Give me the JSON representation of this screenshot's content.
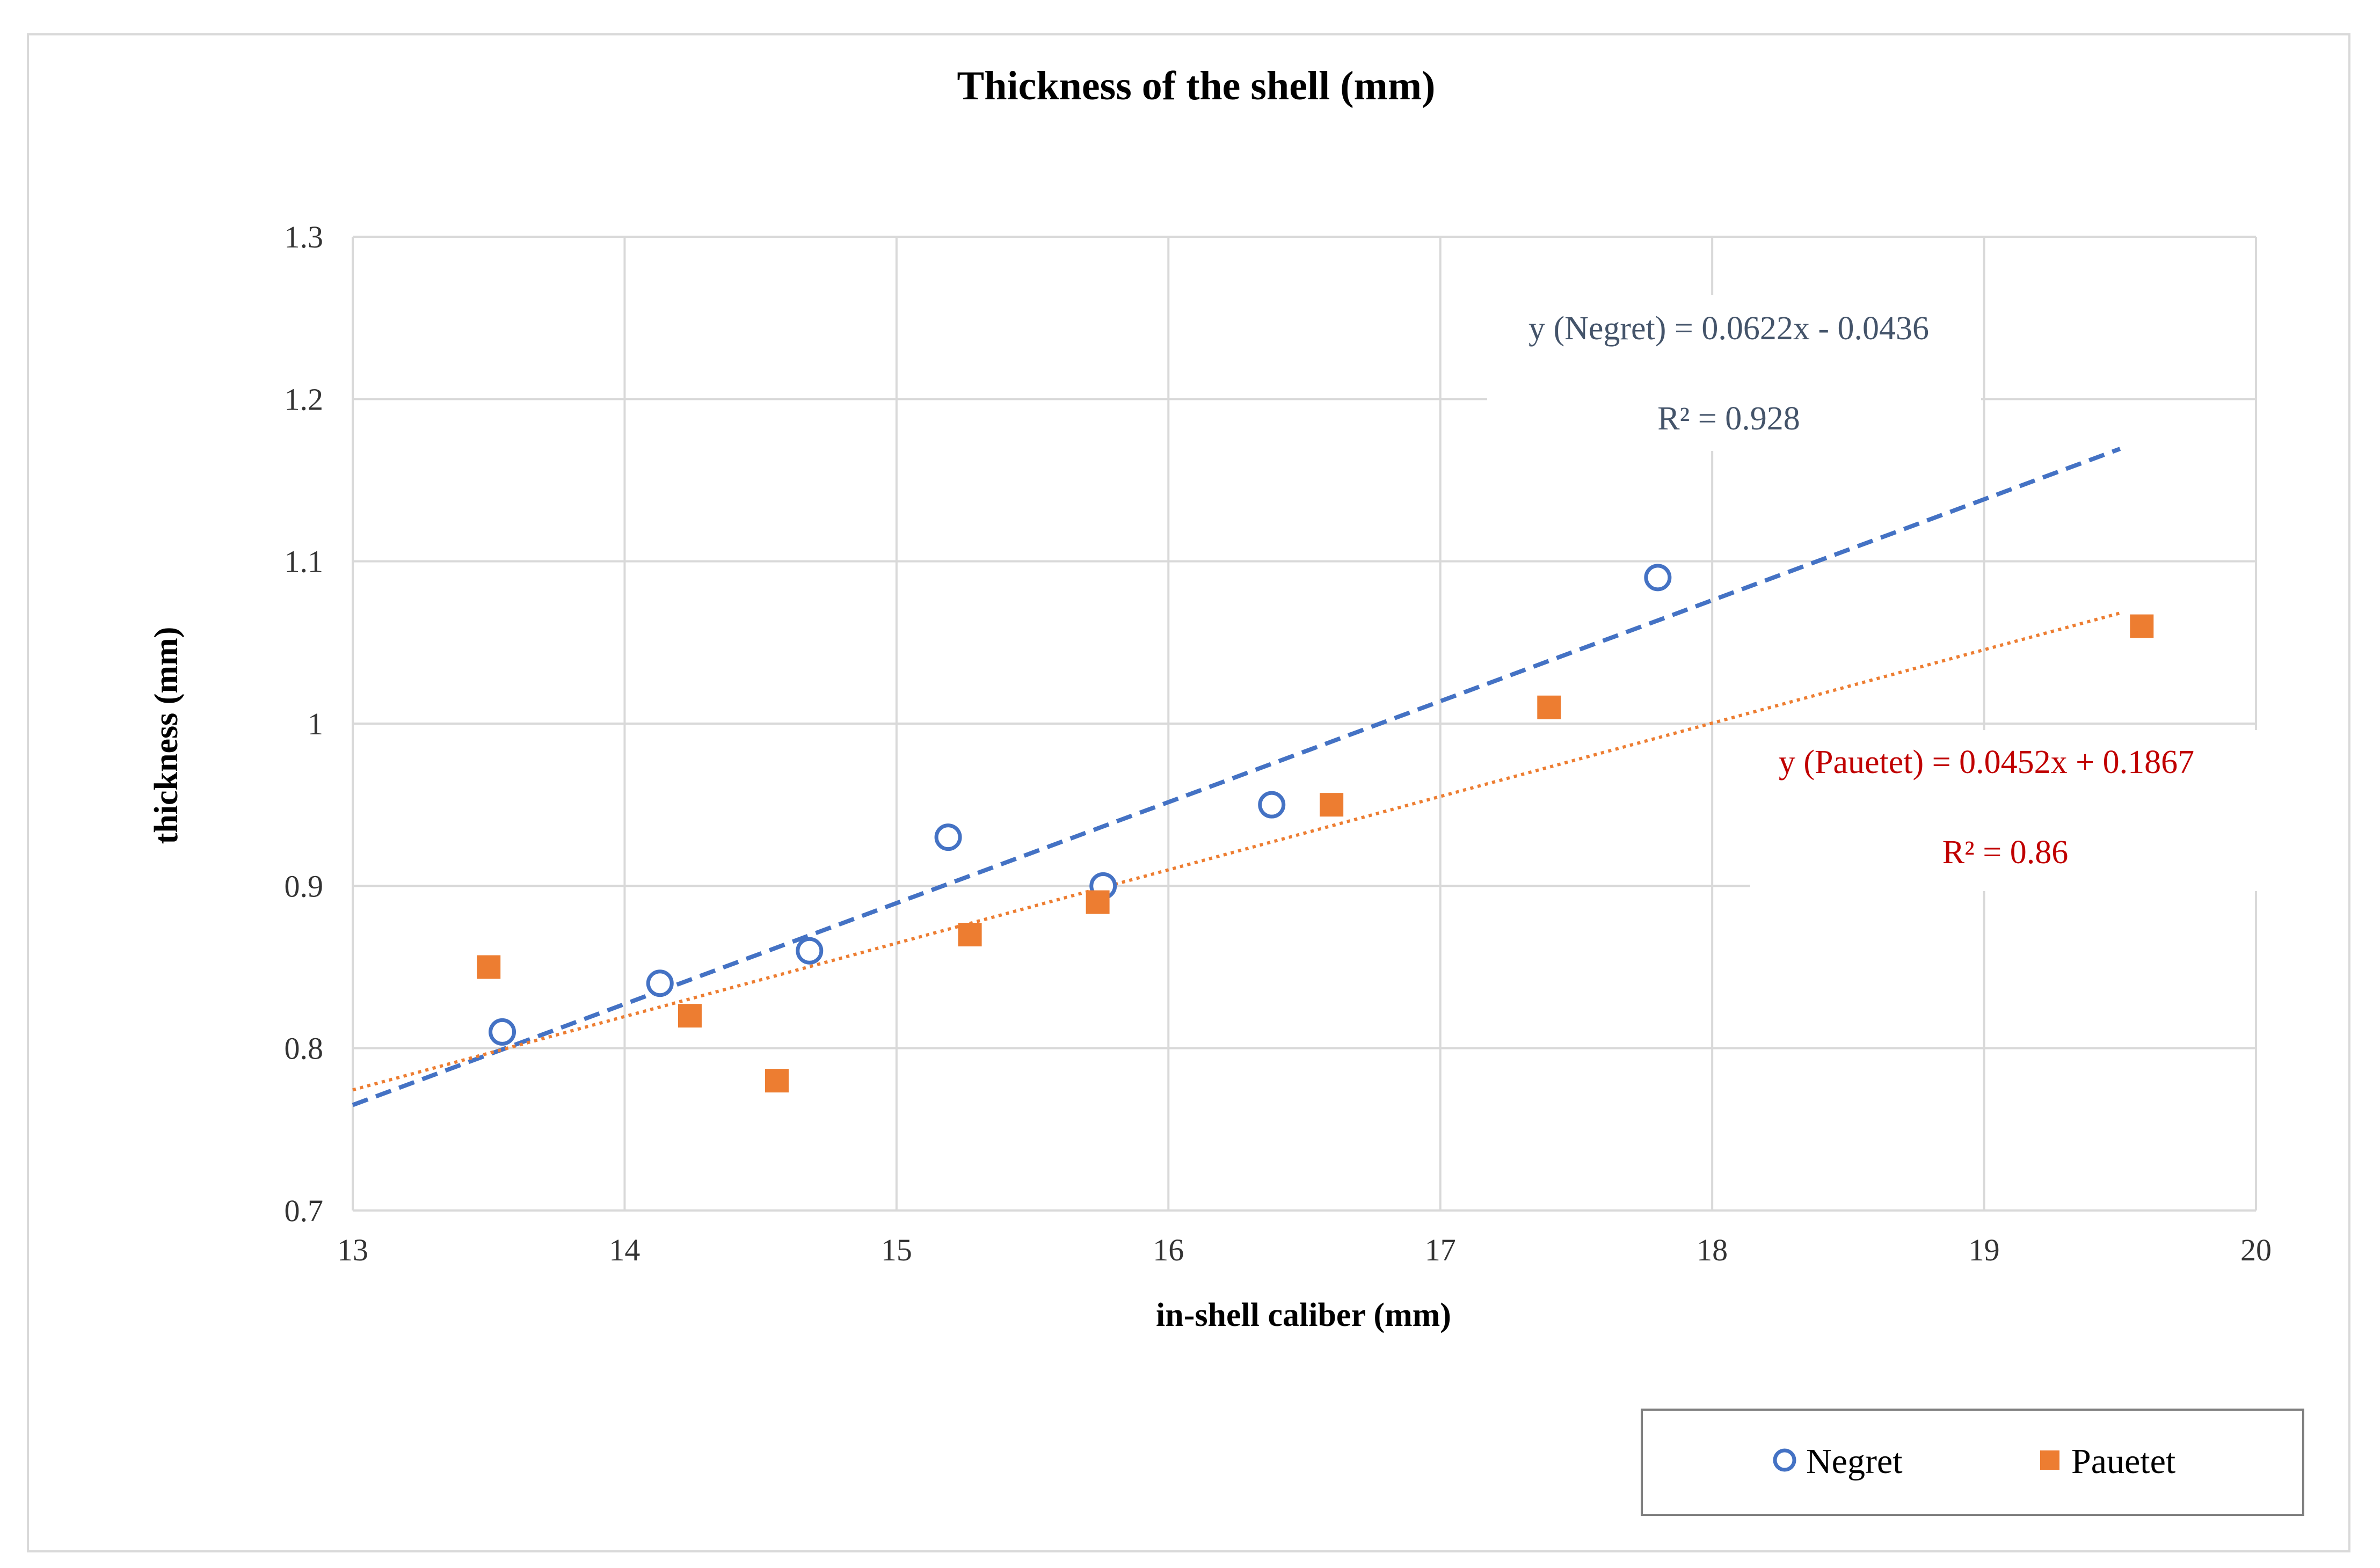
{
  "chart_data": {
    "type": "scatter",
    "title": "Thickness of the shell (mm)",
    "xlabel": "in-shell caliber (mm)",
    "ylabel": "thickness (mm)",
    "xlim": [
      13,
      20
    ],
    "ylim": [
      0.7,
      1.3
    ],
    "x_ticks": [
      13,
      14,
      15,
      16,
      17,
      18,
      19,
      20
    ],
    "y_ticks": [
      0.7,
      0.8,
      0.9,
      1,
      1.1,
      1.2,
      1.3
    ],
    "x_tick_labels": [
      "13",
      "14",
      "15",
      "16",
      "17",
      "18",
      "19",
      "20"
    ],
    "y_tick_labels": [
      "0.7",
      "0.8",
      "0.9",
      "1",
      "1.1",
      "1.2",
      "1.3"
    ],
    "grid": true,
    "legend_position": "bottom-right",
    "series": [
      {
        "name": "Negret",
        "marker": "open-circle",
        "color": "#4472c4",
        "x": [
          13.55,
          14.13,
          14.68,
          15.19,
          15.76,
          16.38,
          17.8
        ],
        "y": [
          0.81,
          0.84,
          0.86,
          0.93,
          0.9,
          0.95,
          1.09
        ],
        "trendline": {
          "style": "dashed",
          "slope": 0.0622,
          "intercept": -0.0436,
          "x_range": [
            13,
            19.5
          ],
          "equation": "y (Negret) = 0.0622x - 0.0436",
          "r2": "R² = 0.928"
        }
      },
      {
        "name": "Pauetet",
        "marker": "filled-square",
        "color": "#ed7d31",
        "x": [
          13.5,
          14.24,
          14.56,
          15.27,
          15.74,
          16.6,
          17.4,
          19.58
        ],
        "y": [
          0.85,
          0.82,
          0.78,
          0.87,
          0.89,
          0.95,
          1.01,
          1.06
        ],
        "trendline": {
          "style": "dotted",
          "slope": 0.0452,
          "intercept": 0.1867,
          "x_range": [
            13,
            19.5
          ],
          "equation": "y (Pauetet)  = 0.0452x + 0.1867",
          "r2": "R² = 0.86"
        }
      }
    ],
    "colors": {
      "negret_label": "#44546a",
      "pauetet_label": "#c00000",
      "grid": "#d9d9d9"
    }
  }
}
